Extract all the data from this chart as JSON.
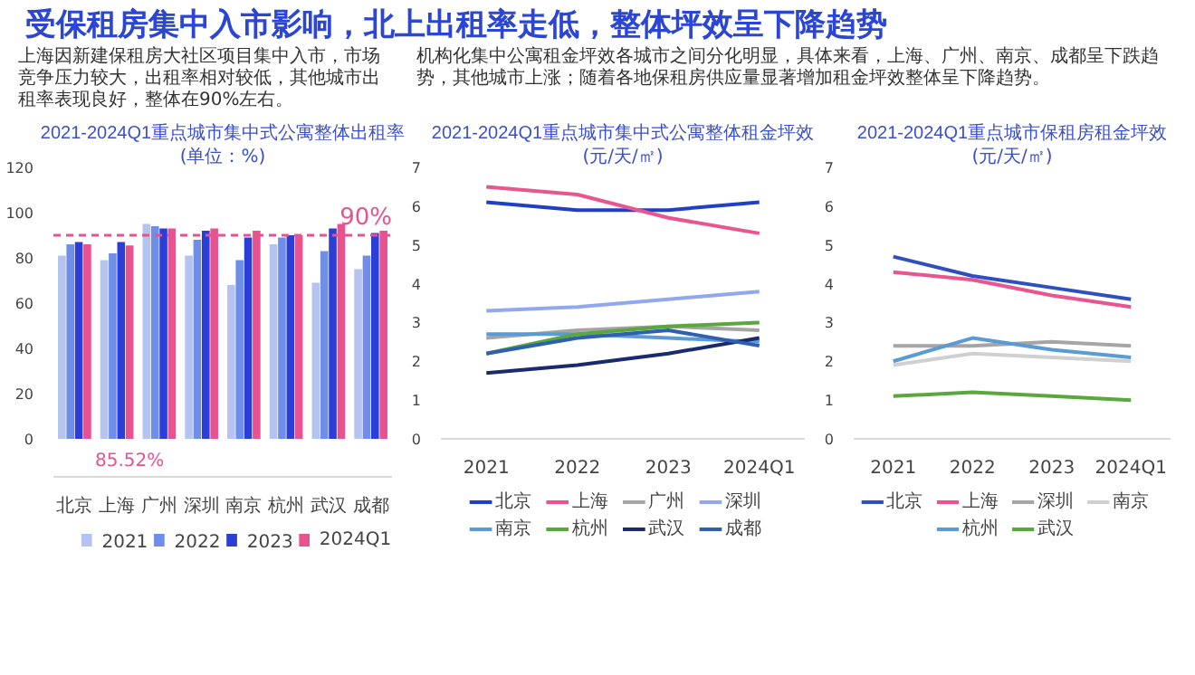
{
  "chart_data": [
    {
      "type": "other",
      "title": "受保租房集中入市影响，北上出租率走低，整体坪效呈下降趋势",
      "annotations": [
        "上海因新建保租房大社区项目集中入市，市场竞争压力较大，出租率相对较低，其他城市出租率表现良好，整体在90%左右。",
        "机构化集中公寓租金坪效各城市之间分化明显，具体来看，上海、广州、南京、成都呈下跌趋势，其他城市上涨；随着各地保租房供应量显著增加租金坪效整体呈下降趋势。"
      ]
    },
    {
      "type": "bar",
      "title": "2021-2024Q1重点城市集中式公寓整体出租率",
      "subtitle": "(单位：%)",
      "categories": [
        "北京",
        "上海",
        "广州",
        "深圳",
        "南京",
        "杭州",
        "武汉",
        "成都"
      ],
      "series": [
        {
          "name": "2021",
          "color": "#b4c3f0",
          "values": [
            81,
            79,
            95,
            81,
            68,
            86,
            69,
            75
          ]
        },
        {
          "name": "2022",
          "color": "#6f8ee8",
          "values": [
            86,
            82,
            94,
            88,
            79,
            89,
            83,
            81
          ]
        },
        {
          "name": "2023",
          "color": "#2b3fd6",
          "values": [
            87,
            87,
            93,
            92,
            89,
            90,
            93,
            91
          ]
        },
        {
          "name": "2024Q1",
          "color": "#e8528f",
          "values": [
            86,
            85.52,
            93,
            93,
            92,
            90,
            95,
            92
          ],
          "value_labels": [
            null,
            "85.52%",
            null,
            null,
            null,
            null,
            null,
            null
          ]
        }
      ],
      "ylim": [
        0,
        120
      ],
      "yticks": [
        0,
        20,
        40,
        60,
        80,
        100,
        120
      ],
      "ref_lines": [
        {
          "axis": "y",
          "value": 90,
          "label": "90%",
          "color": "#e8528f",
          "line_style": "dashed"
        }
      ],
      "legend": "bottom"
    },
    {
      "type": "line",
      "title": "2021-2024Q1重点城市集中式公寓整体租金坪效",
      "subtitle": "(元/天/㎡)",
      "categories": [
        "2021",
        "2022",
        "2023",
        "2024Q1"
      ],
      "series": [
        {
          "name": "北京",
          "color": "#1f3fc7",
          "values": [
            6.1,
            5.9,
            5.9,
            6.1
          ]
        },
        {
          "name": "上海",
          "color": "#e8558f",
          "values": [
            6.5,
            6.3,
            5.7,
            5.3
          ]
        },
        {
          "name": "广州",
          "color": "#a5a5a5",
          "values": [
            2.6,
            2.8,
            2.9,
            2.8
          ]
        },
        {
          "name": "深圳",
          "color": "#8fa8f0",
          "values": [
            3.3,
            3.4,
            3.6,
            3.8
          ]
        },
        {
          "name": "南京",
          "color": "#5b9bd5",
          "values": [
            2.7,
            2.7,
            2.6,
            2.5
          ]
        },
        {
          "name": "杭州",
          "color": "#5aa83c",
          "values": [
            2.2,
            2.7,
            2.9,
            3.0
          ]
        },
        {
          "name": "武汉",
          "color": "#1a2a6c",
          "values": [
            1.7,
            1.9,
            2.2,
            2.6
          ]
        },
        {
          "name": "成都",
          "color": "#2e5fb0",
          "values": [
            2.2,
            2.6,
            2.8,
            2.4
          ]
        }
      ],
      "ylim": [
        0,
        7
      ],
      "yticks": [
        0,
        1,
        2,
        3,
        4,
        5,
        6,
        7
      ],
      "legend": "bottom",
      "line_style": "solid"
    },
    {
      "type": "line",
      "title": "2021-2024Q1重点城市保租房租金坪效",
      "subtitle": "(元/天/㎡)",
      "categories": [
        "2021",
        "2022",
        "2023",
        "2024Q1"
      ],
      "series": [
        {
          "name": "北京",
          "color": "#2e4fc0",
          "values": [
            4.7,
            4.2,
            3.9,
            3.6
          ]
        },
        {
          "name": "上海",
          "color": "#e8558f",
          "values": [
            4.3,
            4.1,
            3.7,
            3.4
          ]
        },
        {
          "name": "深圳",
          "color": "#a5a5a5",
          "values": [
            2.4,
            2.4,
            2.5,
            2.4
          ]
        },
        {
          "name": "南京",
          "color": "#d0d0d0",
          "values": [
            1.9,
            2.2,
            2.1,
            2.0
          ]
        },
        {
          "name": "杭州",
          "color": "#5b9bd5",
          "values": [
            2.0,
            2.6,
            2.3,
            2.1
          ]
        },
        {
          "name": "武汉",
          "color": "#5aa83c",
          "values": [
            1.1,
            1.2,
            1.1,
            1.0
          ]
        }
      ],
      "ylim": [
        0,
        7
      ],
      "yticks": [
        0,
        1,
        2,
        3,
        4,
        5,
        6,
        7
      ],
      "legend": "bottom",
      "line_style": "solid"
    }
  ]
}
